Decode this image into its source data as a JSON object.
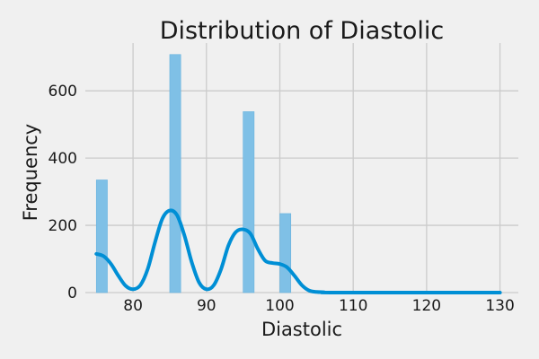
{
  "chart_data": {
    "type": "histogram",
    "title": "Distribution of Diastolic",
    "xlabel": "Diastolic",
    "ylabel": "Frequency",
    "xlim": [
      73.5,
      132.5
    ],
    "ylim": [
      0,
      742
    ],
    "x_ticks": [
      80,
      90,
      100,
      110,
      120,
      130
    ],
    "y_ticks": [
      0,
      200,
      400,
      600
    ],
    "grid": true,
    "legend": "none",
    "bins": [
      {
        "start": 75.0,
        "end": 76.5,
        "count": 335
      },
      {
        "start": 85.0,
        "end": 86.5,
        "count": 708
      },
      {
        "start": 95.0,
        "end": 96.5,
        "count": 538
      },
      {
        "start": 100.0,
        "end": 101.5,
        "count": 235
      }
    ],
    "bar_color": "#7fc0e6",
    "bar_edge_color": "#69b3de",
    "kde": {
      "color": "#008fd5",
      "points": [
        [
          75,
          115
        ],
        [
          76,
          108
        ],
        [
          77,
          85
        ],
        [
          78,
          50
        ],
        [
          79,
          20
        ],
        [
          80,
          10
        ],
        [
          81,
          22
        ],
        [
          82,
          70
        ],
        [
          83,
          150
        ],
        [
          84,
          220
        ],
        [
          85,
          244
        ],
        [
          86,
          230
        ],
        [
          87,
          170
        ],
        [
          88,
          90
        ],
        [
          89,
          30
        ],
        [
          90,
          10
        ],
        [
          91,
          22
        ],
        [
          92,
          70
        ],
        [
          93,
          140
        ],
        [
          94,
          180
        ],
        [
          95,
          188
        ],
        [
          96,
          175
        ],
        [
          97,
          130
        ],
        [
          98,
          95
        ],
        [
          99,
          88
        ],
        [
          100,
          85
        ],
        [
          101,
          75
        ],
        [
          102,
          50
        ],
        [
          103,
          22
        ],
        [
          104,
          6
        ],
        [
          105,
          2
        ],
        [
          106,
          1
        ],
        [
          108,
          0
        ],
        [
          130,
          0
        ]
      ]
    }
  }
}
